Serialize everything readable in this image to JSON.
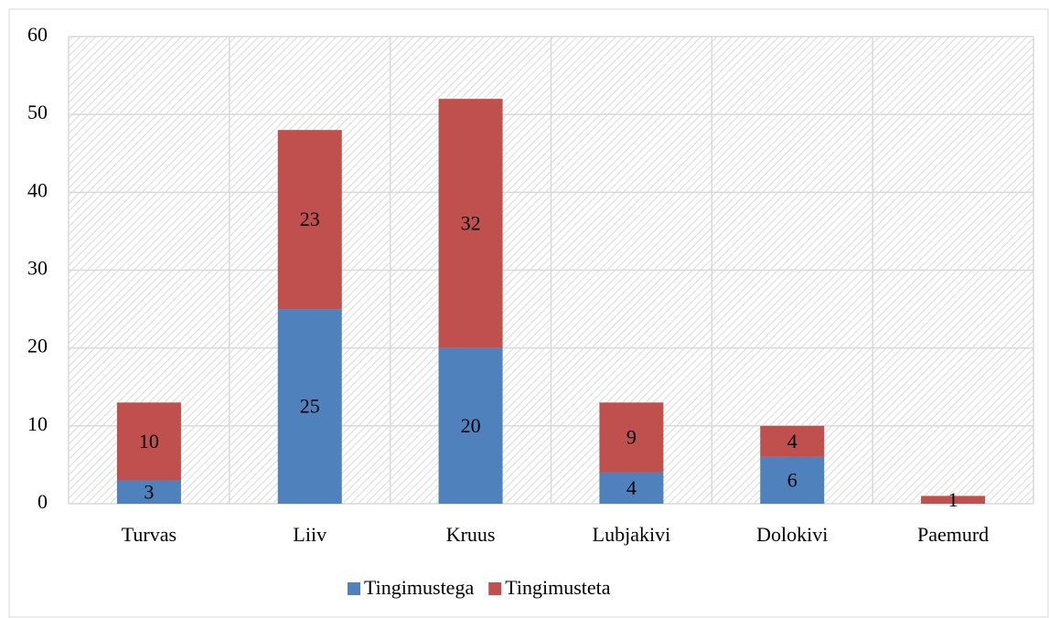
{
  "chart_data": {
    "type": "stacked_bar",
    "categories": [
      "Turvas",
      "Liiv",
      "Kruus",
      "Lubjakivi",
      "Dolokivi",
      "Paemurd"
    ],
    "series": [
      {
        "name": "Tingimustega",
        "color": "#4f81bd",
        "values": [
          3,
          25,
          20,
          4,
          6,
          0
        ]
      },
      {
        "name": "Tingimusteta",
        "color": "#c0504d",
        "values": [
          10,
          23,
          32,
          9,
          4,
          1
        ]
      }
    ],
    "ylim": [
      0,
      60
    ],
    "yticks": [
      0,
      10,
      20,
      30,
      40,
      50,
      60
    ],
    "grid": true,
    "legend": "bottom"
  }
}
